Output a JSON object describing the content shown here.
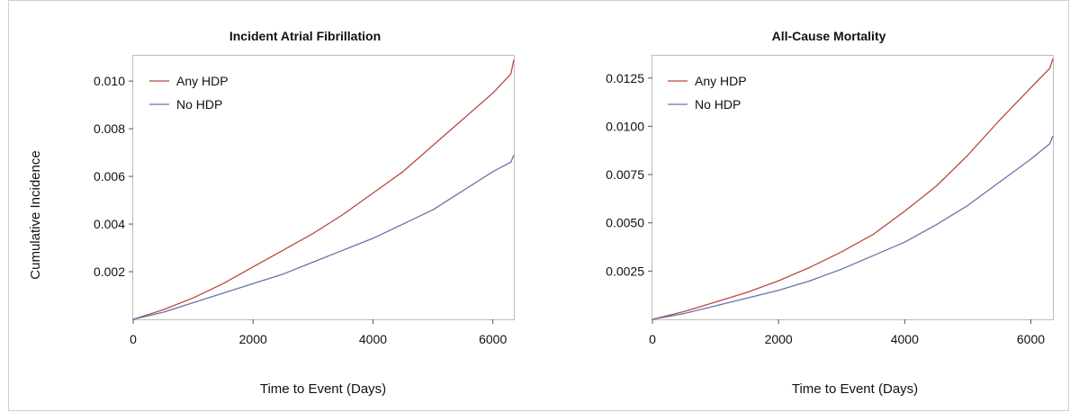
{
  "chart_data": [
    {
      "type": "line",
      "title": "Incident Atrial Fibrillation",
      "xlabel": "Time to Event (Days)",
      "ylabel": "Cumulative Incidence",
      "xlim": [
        0,
        6350
      ],
      "ylim": [
        0,
        0.0111
      ],
      "xticks": [
        "0",
        "2000",
        "4000",
        "6000"
      ],
      "yticks": [
        "0.002",
        "0.004",
        "0.006",
        "0.008",
        "0.010"
      ],
      "legend_position": "top-left",
      "grid": false,
      "series": [
        {
          "name": "Any HDP",
          "color": "#b84a3f",
          "x": [
            0,
            500,
            1000,
            1500,
            2000,
            2500,
            3000,
            3500,
            4000,
            4500,
            5000,
            5500,
            6000,
            6300,
            6350
          ],
          "y": [
            0,
            0.0004,
            0.0009,
            0.0015,
            0.0022,
            0.0029,
            0.0036,
            0.0044,
            0.0053,
            0.0062,
            0.0073,
            0.0084,
            0.0095,
            0.0103,
            0.0109
          ]
        },
        {
          "name": "No HDP",
          "color": "#6673a8",
          "x": [
            0,
            500,
            1000,
            1500,
            2000,
            2500,
            3000,
            3500,
            4000,
            4500,
            5000,
            5500,
            6000,
            6300,
            6350
          ],
          "y": [
            0,
            0.0003,
            0.0007,
            0.0011,
            0.0015,
            0.0019,
            0.0024,
            0.0029,
            0.0034,
            0.004,
            0.0046,
            0.0054,
            0.0062,
            0.0066,
            0.0069
          ]
        }
      ]
    },
    {
      "type": "line",
      "title": "All-Cause Mortality",
      "xlabel": "Time to Event (Days)",
      "ylabel": "",
      "xlim": [
        0,
        6350
      ],
      "ylim": [
        0,
        0.0137
      ],
      "xticks": [
        "0",
        "2000",
        "4000",
        "6000"
      ],
      "yticks": [
        "0.0025",
        "0.0050",
        "0.0075",
        "0.0100",
        "0.0125"
      ],
      "legend_position": "top-left",
      "grid": false,
      "series": [
        {
          "name": "Any HDP",
          "color": "#b84a3f",
          "x": [
            0,
            500,
            1000,
            1500,
            2000,
            2500,
            3000,
            3500,
            4000,
            4500,
            5000,
            5500,
            6000,
            6300,
            6350
          ],
          "y": [
            0,
            0.0004,
            0.0009,
            0.0014,
            0.002,
            0.0027,
            0.0035,
            0.0044,
            0.0056,
            0.0069,
            0.0085,
            0.0103,
            0.012,
            0.013,
            0.0135
          ]
        },
        {
          "name": "No HDP",
          "color": "#6673a8",
          "x": [
            0,
            500,
            1000,
            1500,
            2000,
            2500,
            3000,
            3500,
            4000,
            4500,
            5000,
            5500,
            6000,
            6300,
            6350
          ],
          "y": [
            0,
            0.0003,
            0.0007,
            0.0011,
            0.0015,
            0.002,
            0.0026,
            0.0033,
            0.004,
            0.0049,
            0.0059,
            0.0071,
            0.0083,
            0.0091,
            0.0095
          ]
        }
      ]
    }
  ]
}
